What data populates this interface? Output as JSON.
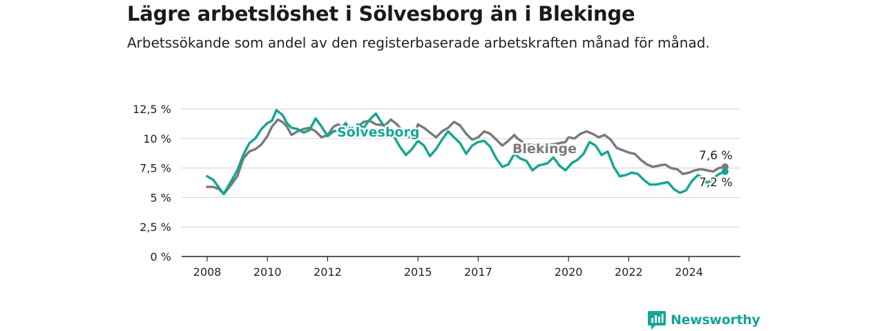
{
  "header": {
    "title": "Lägre arbetslöshet i Sölvesborg än i Blekinge",
    "subtitle": "Arbetssökande som andel av den registerbaserade arbetskraften månad för månad."
  },
  "brand": {
    "name": "Newsworthy",
    "icon": "newsworthy-logo-icon"
  },
  "colors": {
    "solvesborg": "#16a596",
    "blekinge": "#7a7a7a",
    "grid": "#d9d9d9",
    "axis": "#222222"
  },
  "chart_data": {
    "type": "line",
    "title": "Lägre arbetslöshet i Sölvesborg än i Blekinge",
    "subtitle": "Arbetssökande som andel av den registerbaserade arbetskraften månad för månad.",
    "xlabel": "",
    "ylabel": "",
    "ylim": [
      0,
      12.5
    ],
    "yticks": [
      0,
      2.5,
      5,
      7.5,
      10,
      12.5
    ],
    "ytick_labels": [
      "0 %",
      "2,5 %",
      "5 %",
      "7,5 %",
      "10 %",
      "12,5 %"
    ],
    "xlim": [
      2008,
      2025.2
    ],
    "xticks": [
      2008,
      2010,
      2012,
      2015,
      2017,
      2020,
      2022,
      2024
    ],
    "xtick_labels": [
      "2008",
      "2010",
      "2012",
      "2015",
      "2017",
      "2020",
      "2022",
      "2024"
    ],
    "grid": true,
    "legend": "inline labels",
    "series": [
      {
        "name": "Blekinge",
        "color": "#7a7a7a",
        "end_label": "7,6 %",
        "points": [
          [
            2008,
            5.9
          ],
          [
            2008.2,
            5.9
          ],
          [
            2008.4,
            5.7
          ],
          [
            2008.55,
            5.3
          ],
          [
            2008.8,
            6.1
          ],
          [
            2009,
            6.8
          ],
          [
            2009.2,
            8.3
          ],
          [
            2009.4,
            8.9
          ],
          [
            2009.6,
            9.1
          ],
          [
            2009.8,
            9.5
          ],
          [
            2010,
            10.2
          ],
          [
            2010.15,
            11.0
          ],
          [
            2010.35,
            11.6
          ],
          [
            2010.5,
            11.4
          ],
          [
            2010.65,
            11.0
          ],
          [
            2010.8,
            10.3
          ],
          [
            2011.0,
            10.6
          ],
          [
            2011.2,
            10.8
          ],
          [
            2011.4,
            10.9
          ],
          [
            2011.6,
            10.6
          ],
          [
            2011.8,
            10.1
          ],
          [
            2012.0,
            10.3
          ],
          [
            2012.2,
            11.0
          ],
          [
            2012.35,
            11.2
          ],
          [
            2012.5,
            10.9
          ],
          [
            2012.7,
            10.8
          ],
          [
            2013.0,
            11.0
          ],
          [
            2013.2,
            11.4
          ],
          [
            2013.4,
            11.5
          ],
          [
            2013.6,
            11.2
          ],
          [
            2013.9,
            11.1
          ],
          [
            2014.1,
            11.6
          ],
          [
            2014.3,
            11.2
          ],
          [
            2014.5,
            10.6
          ],
          [
            2014.7,
            10.1
          ],
          [
            2014.9,
            10.4
          ],
          [
            2015.0,
            11.2
          ],
          [
            2015.2,
            10.9
          ],
          [
            2015.4,
            10.5
          ],
          [
            2015.6,
            10.1
          ],
          [
            2015.8,
            10.6
          ],
          [
            2016.0,
            10.9
          ],
          [
            2016.2,
            11.4
          ],
          [
            2016.4,
            11.1
          ],
          [
            2016.6,
            10.4
          ],
          [
            2016.8,
            9.9
          ],
          [
            2017.0,
            10.1
          ],
          [
            2017.2,
            10.6
          ],
          [
            2017.4,
            10.4
          ],
          [
            2017.6,
            9.9
          ],
          [
            2017.8,
            9.4
          ],
          [
            2018.0,
            9.8
          ],
          [
            2018.2,
            10.3
          ],
          [
            2018.3,
            10.0
          ],
          [
            2018.6,
            9.5
          ],
          [
            2019.0,
            9.4
          ],
          [
            2019.5,
            9.5
          ],
          [
            2019.9,
            9.7
          ],
          [
            2020.0,
            10.1
          ],
          [
            2020.2,
            10.0
          ],
          [
            2020.4,
            10.4
          ],
          [
            2020.6,
            10.6
          ],
          [
            2020.8,
            10.4
          ],
          [
            2021.0,
            10.1
          ],
          [
            2021.2,
            10.3
          ],
          [
            2021.4,
            9.9
          ],
          [
            2021.6,
            9.2
          ],
          [
            2021.8,
            9.0
          ],
          [
            2022.0,
            8.8
          ],
          [
            2022.2,
            8.7
          ],
          [
            2022.4,
            8.2
          ],
          [
            2022.6,
            7.8
          ],
          [
            2022.8,
            7.6
          ],
          [
            2023.0,
            7.7
          ],
          [
            2023.2,
            7.8
          ],
          [
            2023.4,
            7.5
          ],
          [
            2023.6,
            7.4
          ],
          [
            2023.8,
            7.0
          ],
          [
            2024.0,
            7.1
          ],
          [
            2024.2,
            7.3
          ],
          [
            2024.4,
            7.4
          ],
          [
            2024.6,
            7.3
          ],
          [
            2024.8,
            7.2
          ],
          [
            2025.0,
            7.5
          ],
          [
            2025.2,
            7.6
          ]
        ]
      },
      {
        "name": "Sölvesborg",
        "color": "#16a596",
        "end_label": "7,2 %",
        "points": [
          [
            2008,
            6.8
          ],
          [
            2008.2,
            6.5
          ],
          [
            2008.4,
            5.8
          ],
          [
            2008.55,
            5.3
          ],
          [
            2008.8,
            6.4
          ],
          [
            2009,
            7.3
          ],
          [
            2009.2,
            8.6
          ],
          [
            2009.4,
            9.6
          ],
          [
            2009.6,
            10.0
          ],
          [
            2009.8,
            10.8
          ],
          [
            2010,
            11.3
          ],
          [
            2010.15,
            11.5
          ],
          [
            2010.3,
            12.4
          ],
          [
            2010.5,
            12.0
          ],
          [
            2010.65,
            11.3
          ],
          [
            2010.8,
            10.9
          ],
          [
            2011.0,
            10.8
          ],
          [
            2011.2,
            10.5
          ],
          [
            2011.4,
            10.7
          ],
          [
            2011.6,
            11.7
          ],
          [
            2011.8,
            11.0
          ],
          [
            2012.0,
            10.2
          ],
          [
            2012.2,
            10.6
          ],
          [
            2012.4,
            10.7
          ],
          [
            2012.6,
            11.3
          ],
          [
            2012.8,
            10.5
          ],
          [
            2013.0,
            11.2
          ],
          [
            2013.2,
            10.9
          ],
          [
            2013.4,
            11.6
          ],
          [
            2013.6,
            12.1
          ],
          [
            2013.8,
            11.3
          ],
          [
            2014.0,
            10.8
          ],
          [
            2014.2,
            10.2
          ],
          [
            2014.4,
            9.3
          ],
          [
            2014.6,
            8.6
          ],
          [
            2014.8,
            9.1
          ],
          [
            2015.0,
            9.8
          ],
          [
            2015.2,
            9.4
          ],
          [
            2015.4,
            8.5
          ],
          [
            2015.6,
            9.1
          ],
          [
            2015.8,
            9.9
          ],
          [
            2016.0,
            10.6
          ],
          [
            2016.2,
            10.1
          ],
          [
            2016.4,
            9.6
          ],
          [
            2016.6,
            8.7
          ],
          [
            2016.8,
            9.4
          ],
          [
            2017.0,
            9.7
          ],
          [
            2017.2,
            9.8
          ],
          [
            2017.4,
            9.3
          ],
          [
            2017.6,
            8.3
          ],
          [
            2017.8,
            7.6
          ],
          [
            2018.0,
            7.8
          ],
          [
            2018.2,
            8.7
          ],
          [
            2018.4,
            8.3
          ],
          [
            2018.6,
            8.1
          ],
          [
            2018.8,
            7.3
          ],
          [
            2019.0,
            7.7
          ],
          [
            2019.3,
            7.9
          ],
          [
            2019.5,
            8.4
          ],
          [
            2019.7,
            7.7
          ],
          [
            2019.9,
            7.3
          ],
          [
            2020.1,
            7.9
          ],
          [
            2020.3,
            8.2
          ],
          [
            2020.5,
            8.7
          ],
          [
            2020.7,
            9.7
          ],
          [
            2020.9,
            9.4
          ],
          [
            2021.1,
            8.6
          ],
          [
            2021.3,
            8.9
          ],
          [
            2021.5,
            7.6
          ],
          [
            2021.7,
            6.8
          ],
          [
            2021.9,
            6.9
          ],
          [
            2022.1,
            7.1
          ],
          [
            2022.3,
            7.0
          ],
          [
            2022.5,
            6.5
          ],
          [
            2022.7,
            6.1
          ],
          [
            2022.9,
            6.1
          ],
          [
            2023.1,
            6.2
          ],
          [
            2023.3,
            6.3
          ],
          [
            2023.5,
            5.7
          ],
          [
            2023.7,
            5.4
          ],
          [
            2023.9,
            5.6
          ],
          [
            2024.1,
            6.4
          ],
          [
            2024.3,
            6.9
          ],
          [
            2024.5,
            6.6
          ],
          [
            2024.6,
            6.2
          ],
          [
            2024.8,
            6.6
          ],
          [
            2025.0,
            7.0
          ],
          [
            2025.2,
            7.2
          ]
        ]
      }
    ]
  }
}
